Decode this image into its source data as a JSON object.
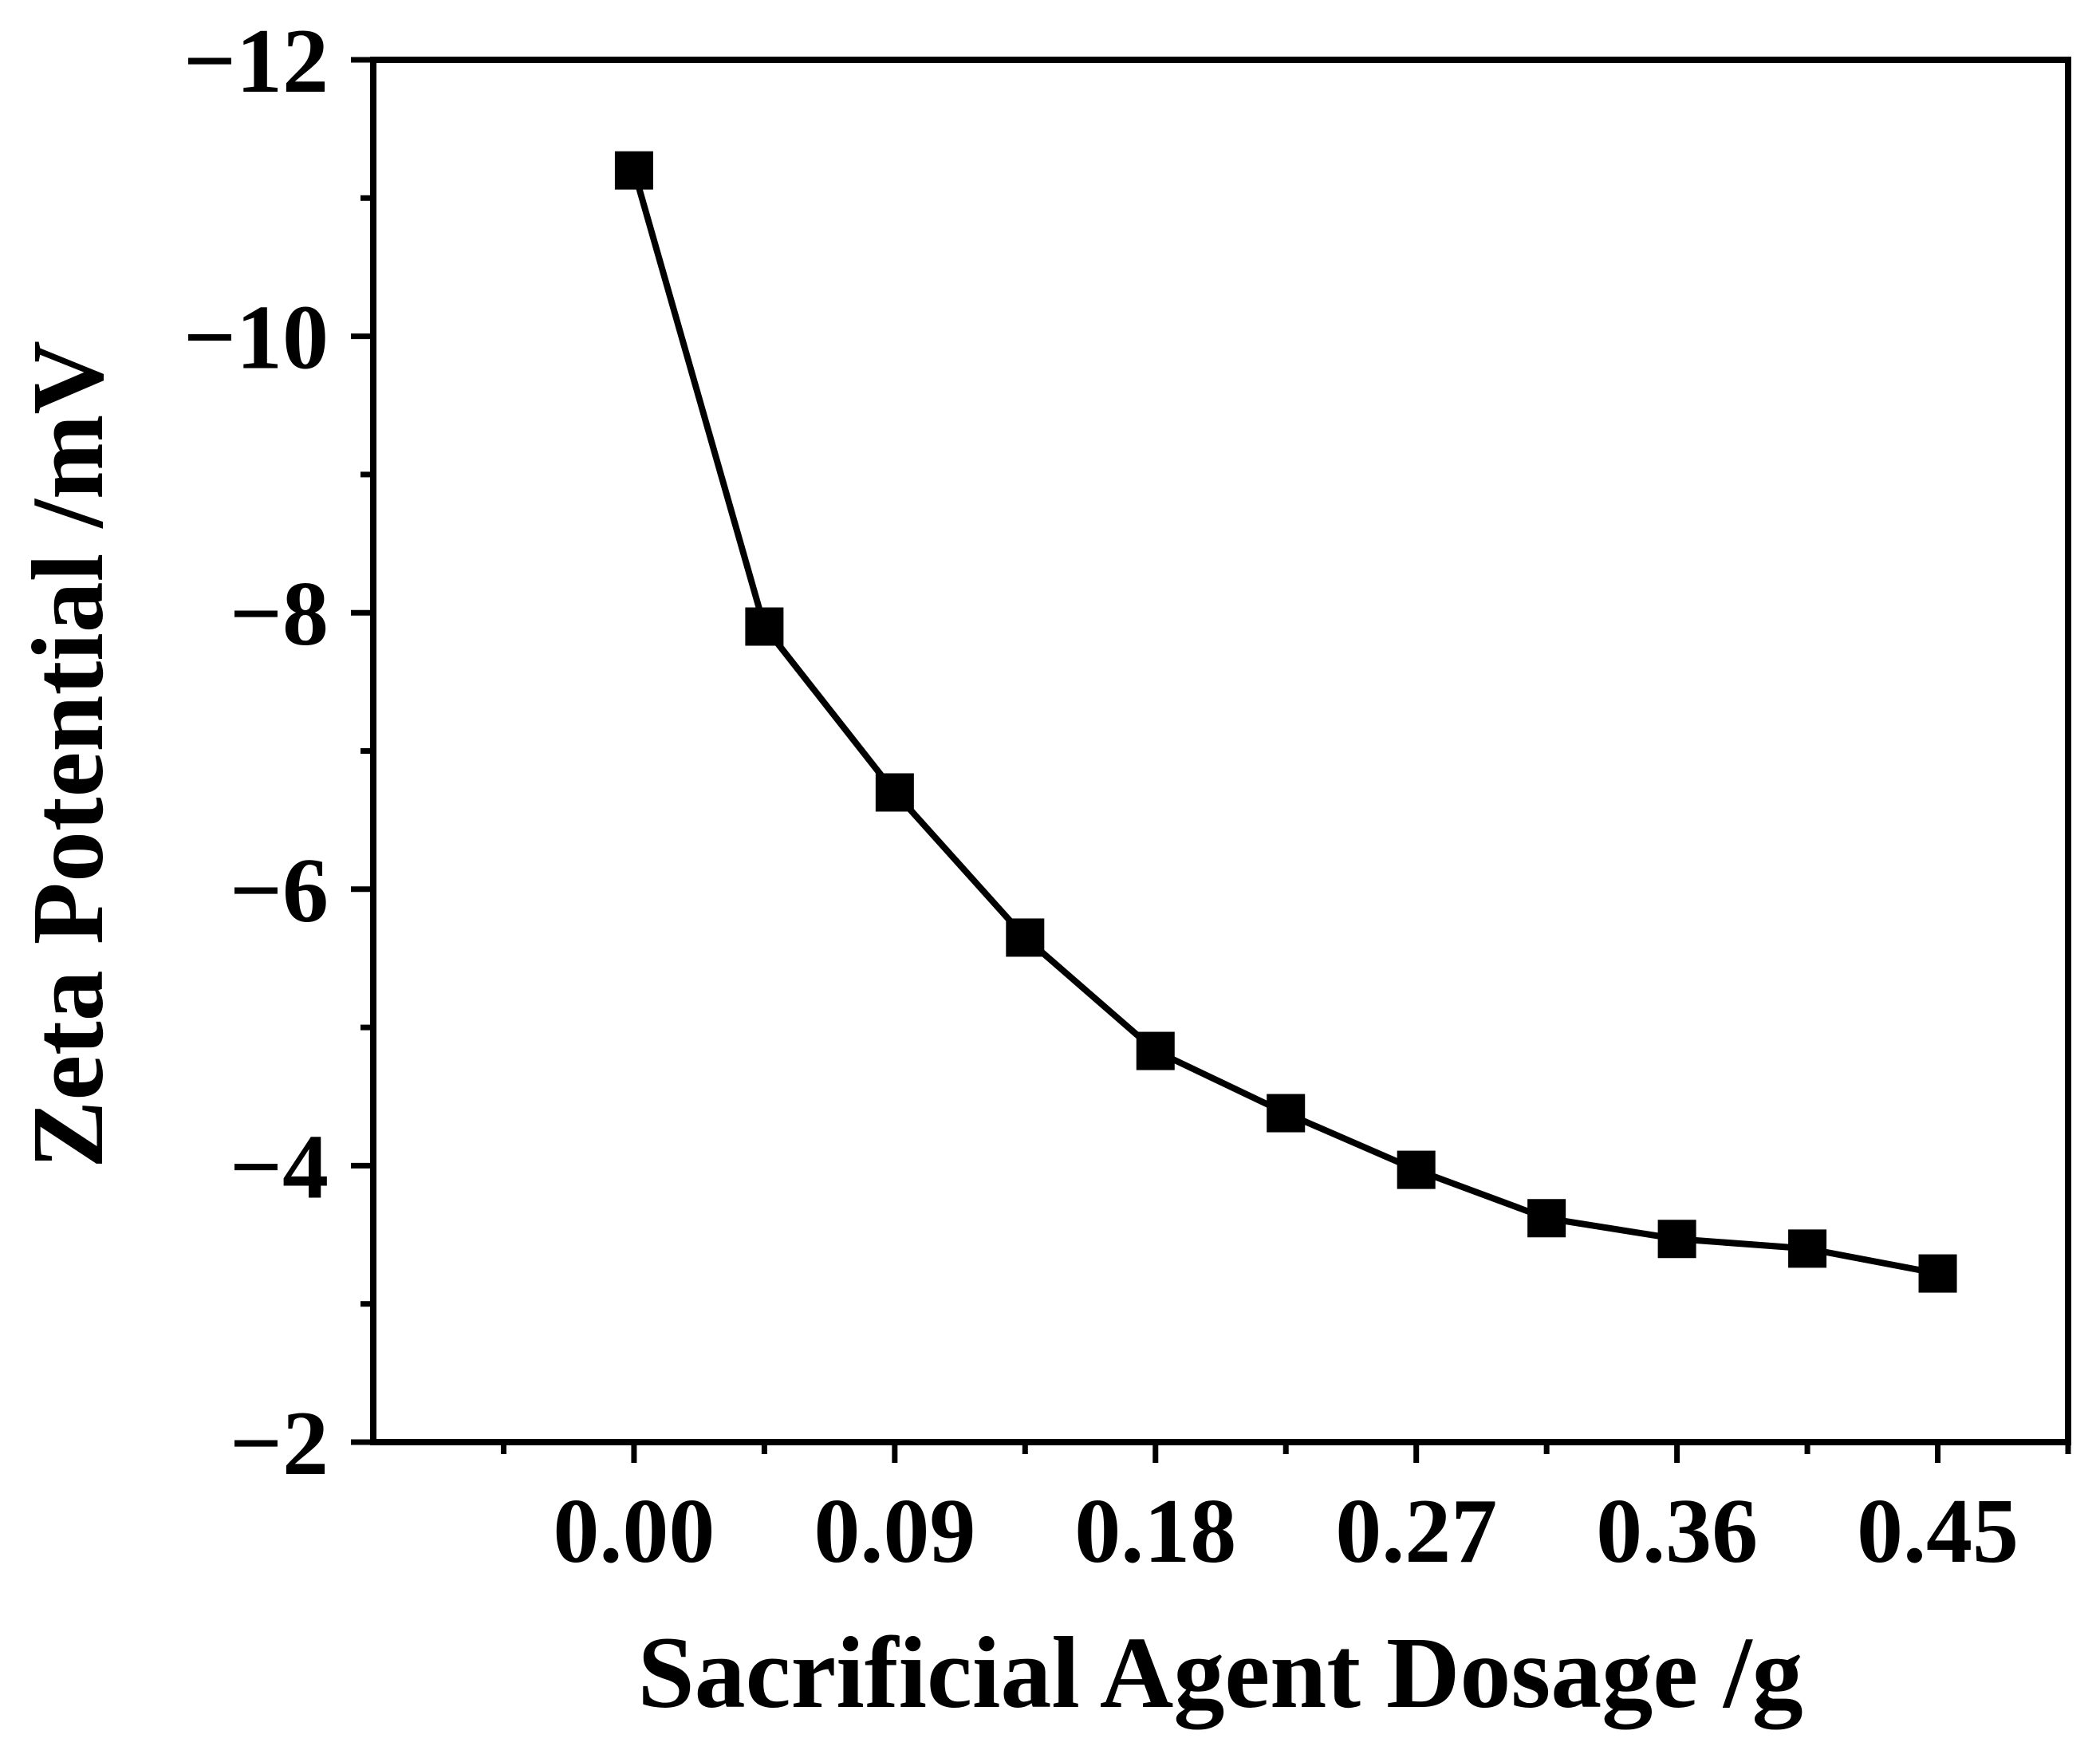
{
  "chart_data": {
    "type": "line",
    "title": "",
    "xlabel": "Sacrificial Agent Dosage /g",
    "ylabel": "Zeta Potential /mV",
    "xlim": [
      -0.09,
      0.495
    ],
    "ylim": [
      -2,
      -12
    ],
    "y_axis_inverted": true,
    "x_ticks": [
      0.0,
      0.09,
      0.18,
      0.27,
      0.36,
      0.45
    ],
    "x_tick_labels": [
      "0.00",
      "0.09",
      "0.18",
      "0.27",
      "0.36",
      "0.45"
    ],
    "y_ticks": [
      -12,
      -10,
      -8,
      -6,
      -4,
      -2
    ],
    "y_tick_labels": [
      "−12",
      "−10",
      "−8",
      "−6",
      "−4",
      "−2"
    ],
    "grid": false,
    "marker": "square",
    "series": [
      {
        "name": "Zeta Potential",
        "color": "#000000",
        "x": [
          0.0,
          0.045,
          0.09,
          0.135,
          0.18,
          0.225,
          0.27,
          0.315,
          0.36,
          0.405,
          0.45
        ],
        "values": [
          -11.2,
          -7.9,
          -6.7,
          -5.65,
          -4.83,
          -4.38,
          -3.97,
          -3.62,
          -3.47,
          -3.4,
          -3.22
        ]
      }
    ]
  }
}
